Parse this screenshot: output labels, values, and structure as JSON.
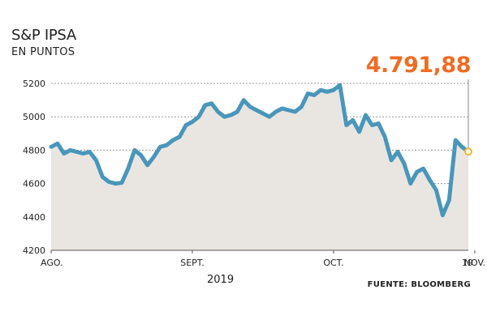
{
  "title": "S&P IPSA",
  "subtitle": "EN PUNTOS",
  "last_value_label": "4.791,88",
  "year_label": "2019",
  "source": "FUENTE: BLOOMBERG",
  "colors": {
    "line": "#4a96bb",
    "area": "#e9e6e1",
    "accent": "#ef6c23",
    "marker_fill": "#ffffff",
    "marker_stroke": "#f2b433",
    "grid": "#999999"
  },
  "chart_data": {
    "type": "area",
    "title": "S&P IPSA",
    "subtitle": "EN PUNTOS",
    "xlabel": "2019",
    "ylabel": "",
    "ylim": [
      4200,
      5200
    ],
    "yticks": [
      4200,
      4400,
      4600,
      4800,
      5000,
      5200
    ],
    "ytick_labels": [
      "4200",
      "4400",
      "4600",
      "4800",
      "5000",
      "5200"
    ],
    "xtick_labels": [
      "AGO.",
      "SEPT.",
      "OCT.",
      "NOV.",
      "19"
    ],
    "xtick_index": [
      0,
      22,
      44,
      66,
      81
    ],
    "grid": true,
    "series": [
      {
        "values": [
          4820,
          4840,
          4780,
          4800,
          4790,
          4780,
          4790,
          4740,
          4640,
          4610,
          4600,
          4605,
          4690,
          4800,
          4770,
          4710,
          4760,
          4820,
          4830,
          4860,
          4880,
          4950,
          4970,
          5000,
          5070,
          5080,
          5030,
          5000,
          5010,
          5030,
          5100,
          5060,
          5040,
          5020,
          5000,
          5030,
          5050,
          5040,
          5030,
          5060,
          5140,
          5130,
          5160,
          5150,
          5160,
          5190,
          4950,
          4980,
          4910,
          5010,
          4950,
          4960,
          4880,
          4740,
          4790,
          4720,
          4600,
          4670,
          4690,
          4620,
          4560,
          4410,
          4500,
          4860,
          4820,
          4791.88
        ]
      }
    ],
    "last_value": 4791.88
  }
}
